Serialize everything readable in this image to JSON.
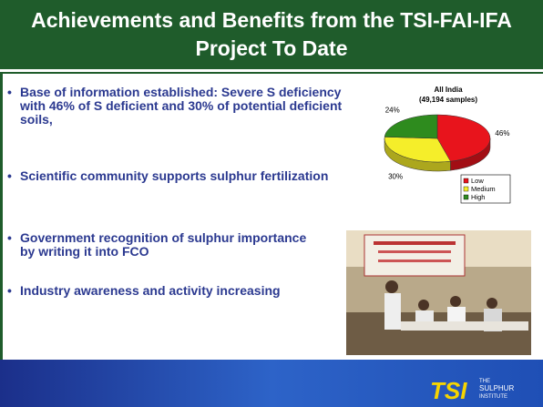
{
  "header": {
    "title": "Achievements and Benefits from the TSI-FAI-IFA Project To Date"
  },
  "bullets": [
    "Base of information established: Severe S deficiency with 46% of S deficient  and 30% of potential deficient soils,",
    "Scientific community supports sulphur fertilization",
    "Government recognition of sulphur importance by writing it into FCO",
    "Industry awareness and activity increasing"
  ],
  "chart_data": {
    "type": "pie",
    "title": "All India",
    "subtitle": "(49,194 samples)",
    "categories": [
      "Low",
      "Medium",
      "High"
    ],
    "values": [
      46,
      30,
      24
    ],
    "value_labels": [
      "46%",
      "30%",
      "24%"
    ],
    "colors": [
      "#e8141c",
      "#f5ee2a",
      "#2e8b1e"
    ],
    "legend": "bottom-right"
  },
  "footer": {
    "logo": "TSI",
    "tagline": [
      "THE",
      "SULPHUR",
      "INSTITUTE"
    ]
  }
}
